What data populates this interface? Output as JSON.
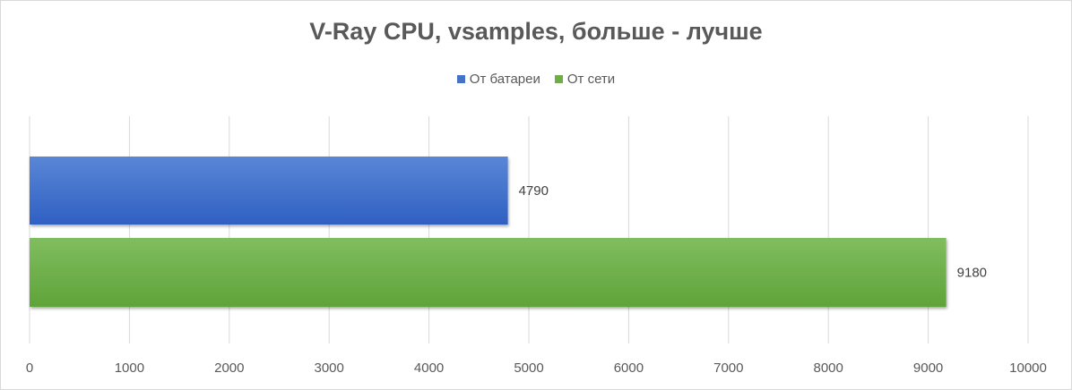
{
  "colors": {
    "battery_top": "#5a86d6",
    "battery_bottom": "#2f60c2",
    "mains_top": "#80bd5e",
    "mains_bottom": "#5fa33a",
    "legend_battery": "#4472c4",
    "legend_mains": "#70ad47",
    "grid": "#d9d9d9",
    "text": "#595959"
  },
  "chart_data": {
    "type": "bar",
    "orientation": "horizontal",
    "title": "V-Ray CPU, vsamples, больше - лучше",
    "xlabel": "",
    "ylabel": "",
    "legend": "top",
    "grid": true,
    "xlim": [
      0,
      10000
    ],
    "ticks": [
      "0",
      "1000",
      "2000",
      "3000",
      "4000",
      "5000",
      "6000",
      "7000",
      "8000",
      "9000",
      "10000"
    ],
    "tick_values": [
      0,
      1000,
      2000,
      3000,
      4000,
      5000,
      6000,
      7000,
      8000,
      9000,
      10000
    ],
    "series": [
      {
        "name": "От батареи",
        "values": [
          4790
        ],
        "label": "4790"
      },
      {
        "name": "От сети",
        "values": [
          9180
        ],
        "label": "9180"
      }
    ]
  }
}
